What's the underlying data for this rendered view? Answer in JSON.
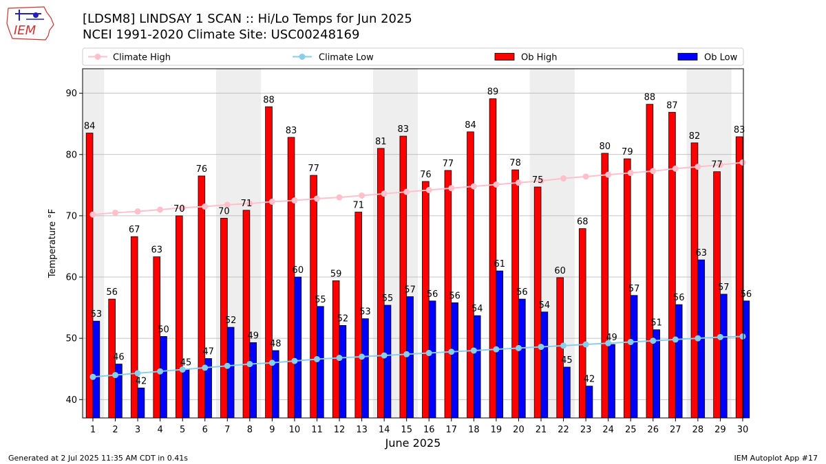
{
  "header": {
    "title_line1": "[LDSM8] LINDSAY 1 SCAN :: Hi/Lo Temps for Jun 2025",
    "title_line2": "NCEI 1991-2020 Climate Site: USC00248169",
    "logo_text": "IEM"
  },
  "footer": {
    "left": "Generated at 2 Jul 2025 11:35 AM CDT in 0.41s",
    "right": "IEM Autoplot App #17"
  },
  "colors": {
    "ob_high": "#ff0000",
    "ob_low": "#0000ff",
    "climate_high": "#ffc0cb",
    "climate_low": "#87ceeb",
    "weekend_band": "#eeeeee"
  },
  "chart_data": {
    "type": "bar",
    "xlabel": "June 2025",
    "ylabel": "Temperature °F",
    "ylim": [
      37,
      94
    ],
    "yticks": [
      40,
      50,
      60,
      70,
      80,
      90
    ],
    "grid": true,
    "legend_placement": "top",
    "categories": [
      1,
      2,
      3,
      4,
      5,
      6,
      7,
      8,
      9,
      10,
      11,
      12,
      13,
      14,
      15,
      16,
      17,
      18,
      19,
      20,
      21,
      22,
      23,
      24,
      25,
      26,
      27,
      28,
      29,
      30
    ],
    "weekend_days": [
      [
        1,
        1
      ],
      [
        7,
        8
      ],
      [
        14,
        15
      ],
      [
        21,
        22
      ],
      [
        28,
        29
      ]
    ],
    "series": [
      {
        "name": "Ob High",
        "kind": "bar",
        "values": [
          83.5,
          56.4,
          66.6,
          63.3,
          70.0,
          76.5,
          69.6,
          70.9,
          87.8,
          82.8,
          76.6,
          59.4,
          70.6,
          81.0,
          83.0,
          75.6,
          77.4,
          83.7,
          89.1,
          77.5,
          74.7,
          59.9,
          67.9,
          80.2,
          79.3,
          88.2,
          86.9,
          81.9,
          77.2,
          82.9
        ],
        "labels": [
          "84",
          "56",
          "67",
          "63",
          "70",
          "76",
          "70",
          "71",
          "88",
          "83",
          "77",
          "59",
          "71",
          "81",
          "83",
          "76",
          "77",
          "84",
          "89",
          "78",
          "75",
          "60",
          "68",
          "80",
          "79",
          "88",
          "87",
          "82",
          "77",
          "83"
        ]
      },
      {
        "name": "Ob Low",
        "kind": "bar",
        "values": [
          52.8,
          45.8,
          41.9,
          50.3,
          44.9,
          46.7,
          51.8,
          49.3,
          48.0,
          60.0,
          55.2,
          52.1,
          53.2,
          55.4,
          56.8,
          56.1,
          55.8,
          53.7,
          61.0,
          56.4,
          54.3,
          45.3,
          42.2,
          49.0,
          57.0,
          51.4,
          55.5,
          62.8,
          57.2,
          56.1
        ],
        "labels": [
          "53",
          "46",
          "42",
          "50",
          "45",
          "47",
          "52",
          "49",
          "48",
          "60",
          "55",
          "52",
          "53",
          "55",
          "57",
          "56",
          "56",
          "54",
          "61",
          "56",
          "54",
          "45",
          "42",
          "49",
          "57",
          "51",
          "56",
          "63",
          "57",
          "56"
        ]
      },
      {
        "name": "Climate High",
        "kind": "line",
        "values": [
          70.2,
          70.5,
          70.7,
          71.0,
          71.3,
          71.5,
          71.8,
          72.0,
          72.3,
          72.5,
          72.8,
          73.0,
          73.3,
          73.6,
          73.9,
          74.2,
          74.5,
          74.8,
          75.1,
          75.4,
          75.7,
          76.1,
          76.4,
          76.7,
          77.0,
          77.3,
          77.7,
          78.0,
          78.3,
          78.7
        ]
      },
      {
        "name": "Climate Low",
        "kind": "line",
        "values": [
          43.7,
          44.0,
          44.3,
          44.6,
          44.9,
          45.2,
          45.5,
          45.8,
          46.0,
          46.3,
          46.6,
          46.8,
          47.0,
          47.2,
          47.4,
          47.6,
          47.8,
          48.0,
          48.2,
          48.4,
          48.6,
          48.8,
          49.0,
          49.2,
          49.4,
          49.6,
          49.8,
          50.0,
          50.2,
          50.3
        ]
      }
    ]
  }
}
